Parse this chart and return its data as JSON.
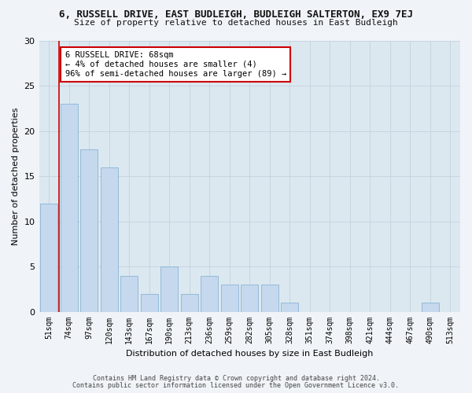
{
  "title": "6, RUSSELL DRIVE, EAST BUDLEIGH, BUDLEIGH SALTERTON, EX9 7EJ",
  "subtitle": "Size of property relative to detached houses in East Budleigh",
  "xlabel": "Distribution of detached houses by size in East Budleigh",
  "ylabel": "Number of detached properties",
  "categories": [
    "51sqm",
    "74sqm",
    "97sqm",
    "120sqm",
    "143sqm",
    "167sqm",
    "190sqm",
    "213sqm",
    "236sqm",
    "259sqm",
    "282sqm",
    "305sqm",
    "328sqm",
    "351sqm",
    "374sqm",
    "398sqm",
    "421sqm",
    "444sqm",
    "467sqm",
    "490sqm",
    "513sqm"
  ],
  "values": [
    12,
    23,
    18,
    16,
    4,
    2,
    5,
    2,
    4,
    3,
    3,
    3,
    1,
    0,
    0,
    0,
    0,
    0,
    0,
    1,
    0
  ],
  "bar_color": "#c5d8ed",
  "bar_edgecolor": "#8ab4d4",
  "annotation_text": "6 RUSSELL DRIVE: 68sqm\n← 4% of detached houses are smaller (4)\n96% of semi-detached houses are larger (89) →",
  "annotation_box_facecolor": "#ffffff",
  "annotation_box_edgecolor": "#cc0000",
  "ylim": [
    0,
    30
  ],
  "yticks": [
    0,
    5,
    10,
    15,
    20,
    25,
    30
  ],
  "grid_color": "#c8d4e0",
  "bg_color": "#dce8f0",
  "fig_facecolor": "#f0f4f8",
  "footer1": "Contains HM Land Registry data © Crown copyright and database right 2024.",
  "footer2": "Contains public sector information licensed under the Open Government Licence v3.0."
}
